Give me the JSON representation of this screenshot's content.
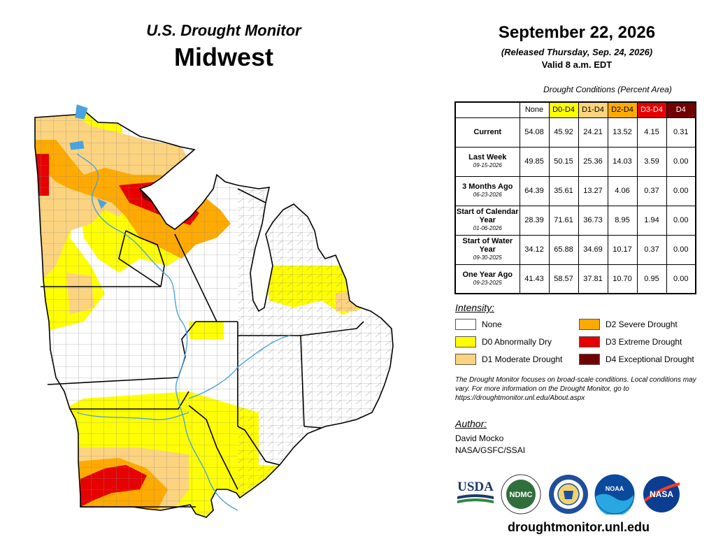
{
  "header": {
    "subtitle": "U.S. Drought Monitor",
    "region": "Midwest",
    "date": "September 22, 2026",
    "released": "(Released Thursday, Sep. 24, 2026)",
    "valid": "Valid 8 a.m. EDT"
  },
  "table": {
    "caption": "Drought Conditions (Percent Area)",
    "columns": [
      "None",
      "D0-D4",
      "D1-D4",
      "D2-D4",
      "D3-D4",
      "D4"
    ],
    "column_colors": [
      "#ffffff",
      "#ffff00",
      "#fcd37f",
      "#ffaa00",
      "#e60000",
      "#730000"
    ],
    "rows": [
      {
        "label": "Current",
        "date": "",
        "values": [
          "54.08",
          "45.92",
          "24.21",
          "13.52",
          "4.15",
          "0.31"
        ]
      },
      {
        "label": "Last Week",
        "date": "09-15-2026",
        "values": [
          "49.85",
          "50.15",
          "25.36",
          "14.03",
          "3.59",
          "0.00"
        ]
      },
      {
        "label": "3 Months Ago",
        "date": "06-23-2026",
        "values": [
          "64.39",
          "35.61",
          "13.27",
          "4.06",
          "0.37",
          "0.00"
        ]
      },
      {
        "label": "Start of Calendar Year",
        "date": "01-06-2026",
        "values": [
          "28.39",
          "71.61",
          "36.73",
          "8.95",
          "1.94",
          "0.00"
        ]
      },
      {
        "label": "Start of Water Year",
        "date": "09-30-2025",
        "values": [
          "34.12",
          "65.88",
          "34.69",
          "10.17",
          "0.37",
          "0.00"
        ]
      },
      {
        "label": "One Year Ago",
        "date": "09-23-2025",
        "values": [
          "41.43",
          "58.57",
          "37.81",
          "10.70",
          "0.95",
          "0.00"
        ]
      }
    ]
  },
  "legend": {
    "title": "Intensity:",
    "items": [
      {
        "label": "None",
        "color": "#ffffff"
      },
      {
        "label": "D0 Abnormally Dry",
        "color": "#ffff00"
      },
      {
        "label": "D1 Moderate Drought",
        "color": "#fcd37f"
      },
      {
        "label": "D2 Severe Drought",
        "color": "#ffaa00"
      },
      {
        "label": "D3 Extreme Drought",
        "color": "#e60000"
      },
      {
        "label": "D4 Exceptional Drought",
        "color": "#730000"
      }
    ]
  },
  "note": "The Drought Monitor focuses on broad-scale conditions. Local conditions may vary. For more information on the Drought Monitor, go to https://droughtmonitor.unl.edu/About.aspx",
  "author": {
    "title": "Author:",
    "name": "David Mocko",
    "org": "NASA/GSFC/SSAI"
  },
  "logos": {
    "usda": "USDA",
    "ndmc": "NDMC",
    "noaa": "NOAA",
    "nasa": "NASA"
  },
  "url": "droughtmonitor.unl.edu"
}
